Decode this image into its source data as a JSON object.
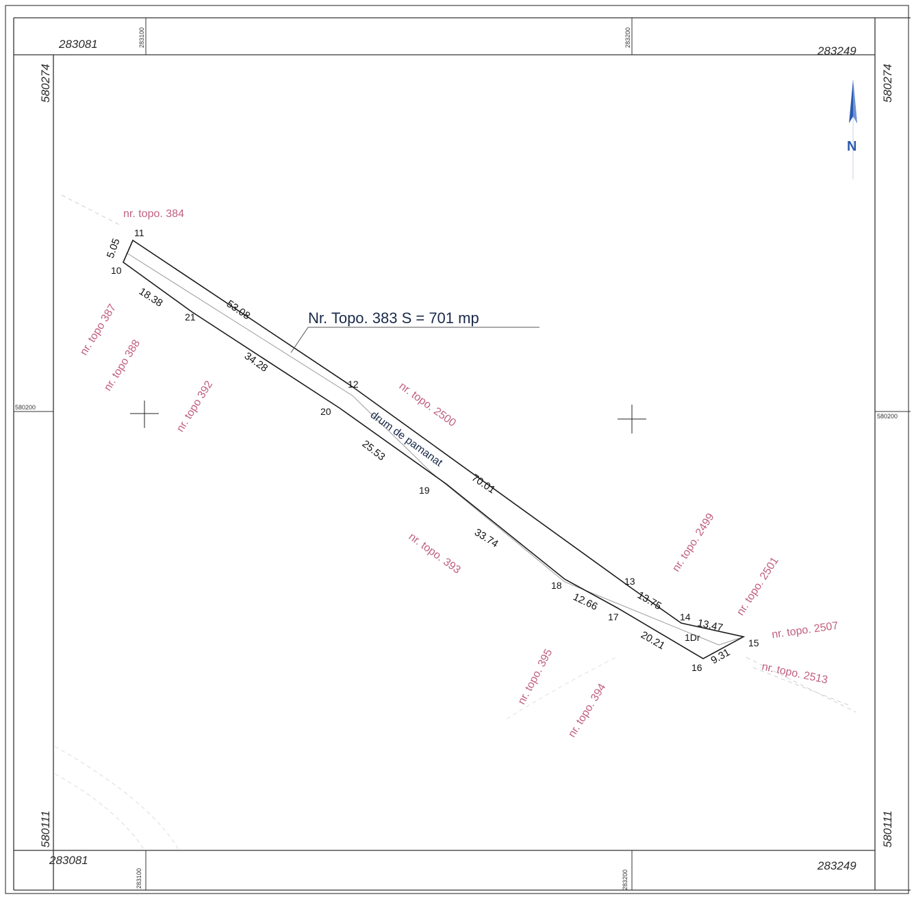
{
  "frame": {
    "x_left_top": "283081",
    "x_right_top": "283249",
    "x_left_bottom": "283081",
    "x_right_bottom": "283249",
    "y_top_left": "580274",
    "y_top_right": "580274",
    "y_bottom_left": "580111",
    "y_bottom_right": "580111",
    "tick_x_100_top": "283100",
    "tick_x_200_top": "283200",
    "tick_x_100_bottom": "283100",
    "tick_x_200_bottom": "283200",
    "tick_y_200_left": "580200",
    "tick_y_200_right": "580200"
  },
  "parcel": {
    "title": "Nr. Topo. 383   S = 701 mp",
    "road_label": "drum de pamanat",
    "subparcel": "1Dr"
  },
  "points": [
    "10",
    "11",
    "12",
    "13",
    "14",
    "15",
    "16",
    "17",
    "18",
    "19",
    "20",
    "21"
  ],
  "distances": [
    "5.05",
    "53.08",
    "70.01",
    "13.75",
    "13.47",
    "9.31",
    "20.21",
    "12.66",
    "33.74",
    "25.53",
    "34.28",
    "18.38"
  ],
  "neighbors": [
    "nr. topo. 384",
    "nr. topo 387",
    "nr. topo 388",
    "nr. topo 392",
    "nr. topo. 2500",
    "nr. topo. 393",
    "nr. topo. 2499",
    "nr. topo. 2501",
    "nr. topo. 2507",
    "nr. topo. 2513",
    "nr. topo. 395",
    "nr. topo. 394"
  ],
  "north_arrow": "N",
  "colors": {
    "boundary": "#1a1a1a",
    "neighbor_text": "#c0607e",
    "north": "#2a5ab0",
    "title": "#1a2a4a"
  }
}
